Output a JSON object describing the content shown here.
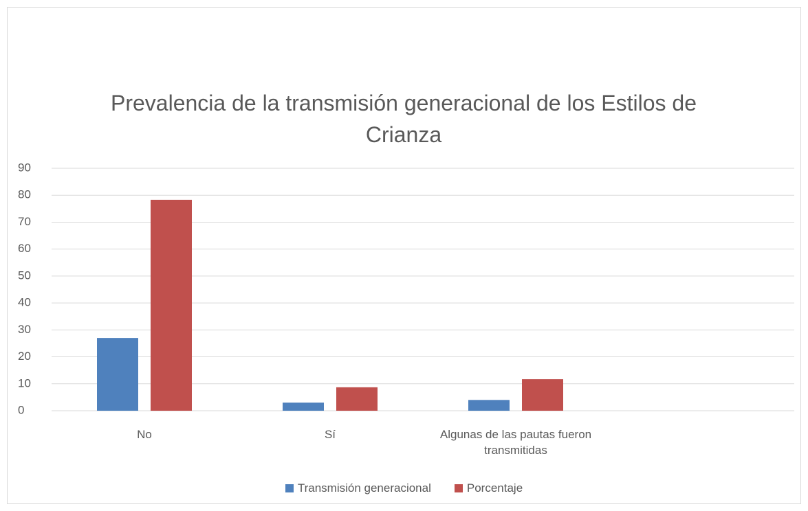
{
  "chart_data": {
    "type": "bar",
    "title": "Prevalencia de la transmisión generacional de los Estilos de Crianza",
    "categories": [
      "No",
      "Sí",
      "Algunas de las pautas fueron transmitidas",
      null
    ],
    "series": [
      {
        "name": "Transmisión generacional",
        "color": "#4f81bd",
        "values": [
          27,
          3,
          4,
          null
        ]
      },
      {
        "name": "Porcentaje",
        "color": "#c0504d",
        "values": [
          78.3,
          8.7,
          11.7,
          null
        ]
      }
    ],
    "ylim": [
      0,
      90
    ],
    "yticks": [
      0,
      10,
      20,
      30,
      40,
      50,
      60,
      70,
      80,
      90
    ],
    "grid": true,
    "legend": "bottom"
  }
}
